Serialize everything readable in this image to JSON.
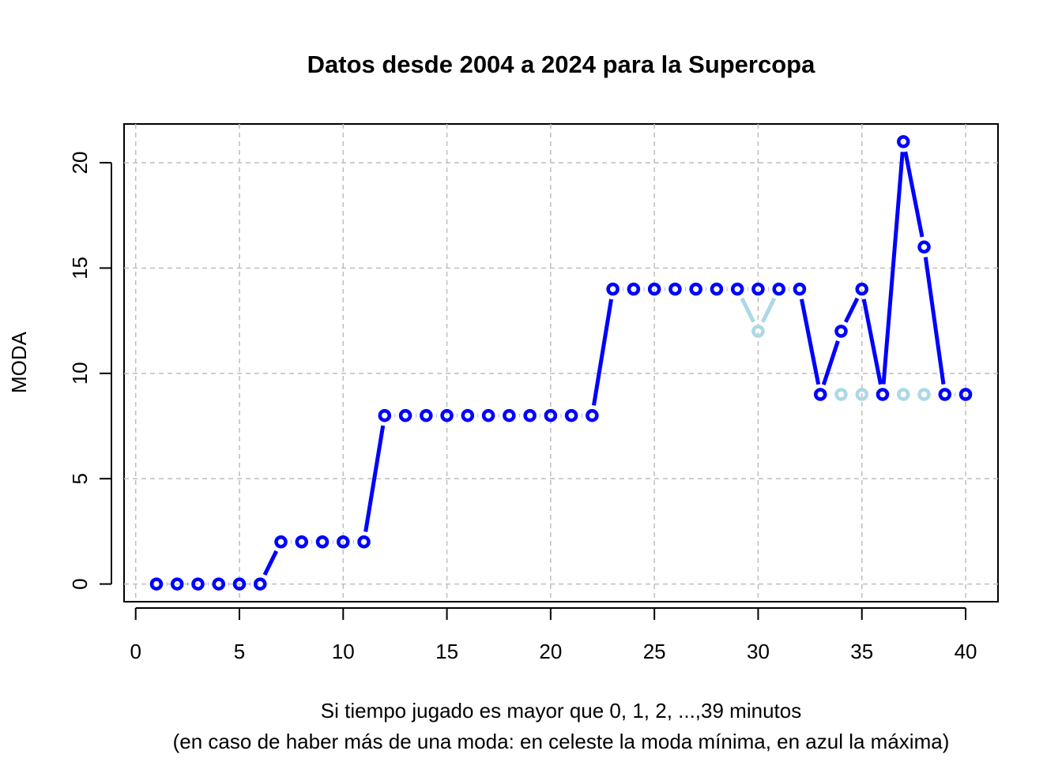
{
  "chart_data": {
    "type": "line",
    "title": "Datos desde 2004 a 2024 para la Supercopa",
    "ylabel": "MODA",
    "xlabel": [
      "Si tiempo jugado es mayor que 0, 1, 2, ...,39 minutos",
      "(en caso de haber más de una moda: en celeste la moda mínima, en azul la máxima)"
    ],
    "x": [
      1,
      2,
      3,
      4,
      5,
      6,
      7,
      8,
      9,
      10,
      11,
      12,
      13,
      14,
      15,
      16,
      17,
      18,
      19,
      20,
      21,
      22,
      23,
      24,
      25,
      26,
      27,
      28,
      29,
      30,
      31,
      32,
      33,
      34,
      35,
      36,
      37,
      38,
      39,
      40
    ],
    "series": [
      {
        "color": "#add8e6",
        "values": [
          0,
          0,
          0,
          0,
          0,
          0,
          2,
          2,
          2,
          2,
          2,
          8,
          8,
          8,
          8,
          8,
          8,
          8,
          8,
          8,
          8,
          8,
          14,
          14,
          14,
          14,
          14,
          14,
          14,
          12,
          14,
          14,
          9,
          9,
          9,
          9,
          9,
          9,
          9,
          9
        ]
      },
      {
        "color": "#0000ff",
        "values": [
          0,
          0,
          0,
          0,
          0,
          0,
          2,
          2,
          2,
          2,
          2,
          8,
          8,
          8,
          8,
          8,
          8,
          8,
          8,
          8,
          8,
          8,
          14,
          14,
          14,
          14,
          14,
          14,
          14,
          14,
          14,
          14,
          9,
          12,
          14,
          9,
          21,
          16,
          9,
          9
        ]
      }
    ],
    "xlim": [
      -0.56,
      41.56
    ],
    "ylim": [
      -0.84,
      21.84
    ],
    "xticks": [
      0,
      5,
      10,
      15,
      20,
      25,
      30,
      35,
      40
    ],
    "yticks": [
      0,
      5,
      10,
      15,
      20
    ],
    "grid": true
  }
}
